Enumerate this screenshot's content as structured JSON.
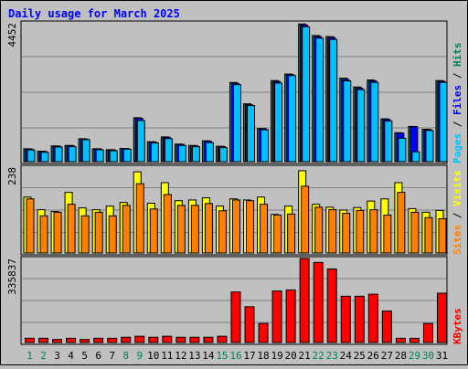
{
  "title": "Daily usage for March 2025",
  "colors": {
    "background": "#c0c0c0",
    "panel": "#c0c0c0",
    "grid": "#808080",
    "title": "#0000ff",
    "hits": "#00805c",
    "files": "#0000ff",
    "pages": "#00c0ff",
    "visits": "#ffff00",
    "sites": "#ff8000",
    "kbytes": "#ff0000",
    "day_weekday": "#000000",
    "day_weekend": "#00805c"
  },
  "chart_data": [
    {
      "type": "bar",
      "name": "hits-files-pages",
      "x": [
        1,
        2,
        3,
        4,
        5,
        6,
        7,
        8,
        9,
        10,
        11,
        12,
        13,
        14,
        15,
        16,
        17,
        18,
        19,
        20,
        21,
        22,
        23,
        24,
        25,
        26,
        27,
        28,
        29,
        30,
        31
      ],
      "max_label": "4452",
      "ylim": [
        0,
        4452
      ],
      "legend": [
        "Pages",
        "Files",
        "Hits"
      ],
      "series": [
        {
          "name": "Hits",
          "values": [
            415,
            335,
            505,
            520,
            735,
            415,
            385,
            425,
            1410,
            640,
            795,
            565,
            520,
            670,
            495,
            2540,
            1855,
            1065,
            2600,
            2810,
            4415,
            4045,
            4010,
            2680,
            2395,
            2620,
            1375,
            930,
            1130,
            1040,
            2600
          ]
        },
        {
          "name": "Files",
          "values": [
            405,
            330,
            500,
            515,
            725,
            410,
            380,
            420,
            1390,
            630,
            780,
            555,
            510,
            655,
            485,
            2510,
            1825,
            1050,
            2570,
            2790,
            4380,
            4010,
            3980,
            2640,
            2360,
            2590,
            1355,
            915,
            1120,
            1030,
            2580
          ]
        },
        {
          "name": "Pages",
          "values": [
            375,
            300,
            470,
            480,
            705,
            380,
            350,
            400,
            1320,
            600,
            740,
            520,
            480,
            610,
            450,
            2470,
            1800,
            1020,
            2520,
            2760,
            4320,
            3960,
            3920,
            2590,
            2310,
            2540,
            1300,
            750,
            315,
            1000,
            2540
          ]
        }
      ]
    },
    {
      "type": "bar",
      "name": "visits-sites",
      "x": [
        1,
        2,
        3,
        4,
        5,
        6,
        7,
        8,
        9,
        10,
        11,
        12,
        13,
        14,
        15,
        16,
        17,
        18,
        19,
        20,
        21,
        22,
        23,
        24,
        25,
        26,
        27,
        28,
        29,
        30,
        31
      ],
      "max_label": "238",
      "ylim": [
        0,
        238
      ],
      "legend": [
        "Sites",
        "Visits"
      ],
      "series": [
        {
          "name": "Visits",
          "values": [
            155,
            120,
            115,
            168,
            125,
            120,
            130,
            140,
            225,
            138,
            195,
            145,
            147,
            153,
            130,
            150,
            147,
            155,
            107,
            130,
            228,
            135,
            127,
            119,
            126,
            144,
            150,
            195,
            123,
            113,
            118
          ]
        },
        {
          "name": "Sites",
          "values": [
            150,
            103,
            113,
            135,
            103,
            113,
            103,
            132,
            192,
            122,
            162,
            132,
            132,
            137,
            117,
            147,
            145,
            135,
            105,
            108,
            185,
            127,
            120,
            110,
            118,
            120,
            105,
            168,
            113,
            98,
            95
          ]
        }
      ]
    },
    {
      "type": "bar",
      "name": "kbytes",
      "x": [
        1,
        2,
        3,
        4,
        5,
        6,
        7,
        8,
        9,
        10,
        11,
        12,
        13,
        14,
        15,
        16,
        17,
        18,
        19,
        20,
        21,
        22,
        23,
        24,
        25,
        26,
        27,
        28,
        29,
        30,
        31
      ],
      "max_label": "335837",
      "ylim": [
        0,
        335837
      ],
      "legend": [
        "KBytes"
      ],
      "series": [
        {
          "name": "KBytes",
          "values": [
            17000,
            17000,
            12000,
            17000,
            12000,
            17000,
            17000,
            21000,
            25000,
            21000,
            25000,
            21000,
            21000,
            21000,
            25000,
            202000,
            143000,
            76000,
            206000,
            210000,
            336000,
            320000,
            294000,
            185000,
            185000,
            193000,
            126000,
            17000,
            17000,
            76000,
            197000
          ]
        }
      ]
    }
  ],
  "x_axis": {
    "labels": [
      "1",
      "2",
      "3",
      "4",
      "5",
      "6",
      "7",
      "8",
      "9",
      "10",
      "11",
      "12",
      "13",
      "14",
      "15",
      "16",
      "17",
      "18",
      "19",
      "20",
      "21",
      "22",
      "23",
      "24",
      "25",
      "26",
      "27",
      "28",
      "29",
      "30",
      "31"
    ],
    "weekend": [
      1,
      2,
      8,
      9,
      15,
      16,
      22,
      23,
      29,
      30
    ]
  }
}
